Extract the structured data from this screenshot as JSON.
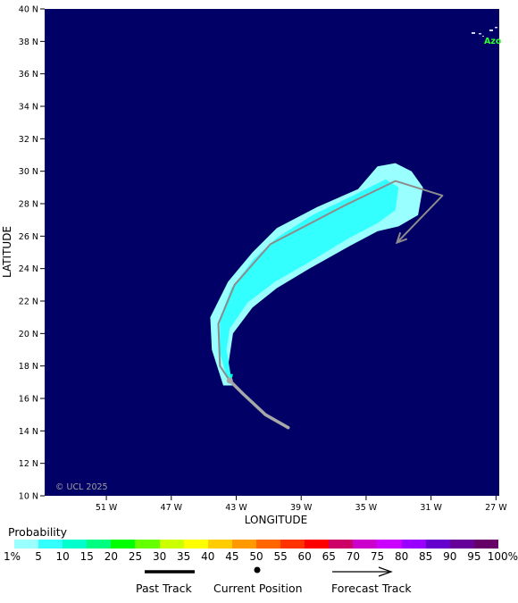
{
  "map": {
    "lat_ticks": [
      "10 N",
      "12 N",
      "14 N",
      "16 N",
      "18 N",
      "20 N",
      "22 N",
      "24 N",
      "26 N",
      "28 N",
      "30 N",
      "32 N",
      "34 N",
      "36 N",
      "38 N",
      "40 N"
    ],
    "lon_ticks": [
      "51 W",
      "47 W",
      "43 W",
      "39 W",
      "35 W",
      "31 W",
      "27 W"
    ],
    "xlabel": "LONGITUDE",
    "ylabel": "LATITUDE",
    "copyright": "© UCL 2025",
    "region_label": "Azo",
    "ocean_color": "#000066",
    "land_color": "#2eff2e"
  },
  "legend": {
    "title": "Probability",
    "labels": [
      "1%",
      "5",
      "10",
      "15",
      "20",
      "25",
      "30",
      "35",
      "40",
      "45",
      "50",
      "55",
      "60",
      "65",
      "70",
      "75",
      "80",
      "85",
      "90",
      "95",
      "100%"
    ],
    "colors": [
      "#99ffff",
      "#33ffff",
      "#00ffcc",
      "#00ff80",
      "#00ff00",
      "#66ff00",
      "#ccff00",
      "#ffff00",
      "#ffcc00",
      "#ff9900",
      "#ff6600",
      "#ff3300",
      "#ff0000",
      "#cc0066",
      "#cc00cc",
      "#cc00ff",
      "#9900ff",
      "#6600cc",
      "#660099",
      "#660066"
    ],
    "past_track_label": "Past Track",
    "current_position_label": "Current Position",
    "forecast_track_label": "Forecast Track"
  },
  "chart_data": {
    "type": "track-map",
    "xlim_lon": [
      -54.8,
      -26.8
    ],
    "ylim_lat": [
      10,
      40
    ],
    "past_track": [
      [
        -39.8,
        14.2
      ],
      [
        -41.2,
        15.0
      ],
      [
        -42.6,
        16.3
      ],
      [
        -43.4,
        17.1
      ]
    ],
    "current_position": [
      -43.4,
      17.1
    ],
    "forecast_track": [
      [
        -43.4,
        17.1
      ],
      [
        -44.0,
        18.0
      ],
      [
        -44.1,
        20.6
      ],
      [
        -43.1,
        23.0
      ],
      [
        -40.9,
        25.5
      ],
      [
        -36.3,
        27.9
      ],
      [
        -33.2,
        29.4
      ],
      [
        -30.3,
        28.5
      ],
      [
        -33.1,
        25.6
      ]
    ],
    "probability_1pct": [
      [
        -43.8,
        16.8
      ],
      [
        -43.2,
        16.8
      ],
      [
        -43.5,
        18.0
      ],
      [
        -43.2,
        20.0
      ],
      [
        -42.0,
        21.6
      ],
      [
        -40.5,
        22.8
      ],
      [
        -38.5,
        24.0
      ],
      [
        -36.0,
        25.4
      ],
      [
        -34.3,
        26.3
      ],
      [
        -33.0,
        26.6
      ],
      [
        -31.8,
        27.3
      ],
      [
        -31.5,
        29.0
      ],
      [
        -32.2,
        30.0
      ],
      [
        -33.2,
        30.5
      ],
      [
        -34.3,
        30.3
      ],
      [
        -35.5,
        28.9
      ],
      [
        -38.0,
        27.8
      ],
      [
        -40.5,
        26.5
      ],
      [
        -42.0,
        25.0
      ],
      [
        -43.5,
        23.2
      ],
      [
        -44.6,
        21.0
      ],
      [
        -44.5,
        19.0
      ]
    ],
    "probability_5pct": [
      [
        -43.5,
        17.0
      ],
      [
        -43.3,
        17.2
      ],
      [
        -43.6,
        19.0
      ],
      [
        -43.4,
        20.3
      ],
      [
        -42.3,
        21.9
      ],
      [
        -40.6,
        23.2
      ],
      [
        -38.5,
        24.4
      ],
      [
        -36.2,
        25.8
      ],
      [
        -34.3,
        26.8
      ],
      [
        -33.2,
        27.6
      ],
      [
        -33.0,
        29.0
      ],
      [
        -33.8,
        29.5
      ],
      [
        -35.8,
        28.5
      ],
      [
        -38.3,
        27.3
      ],
      [
        -40.5,
        25.9
      ],
      [
        -41.9,
        24.6
      ],
      [
        -43.3,
        22.8
      ],
      [
        -44.0,
        21.0
      ],
      [
        -44.0,
        18.8
      ]
    ],
    "probability_10pct": [
      [
        -43.3,
        17.1
      ],
      [
        -43.2,
        17.5
      ],
      [
        -43.4,
        17.5
      ]
    ]
  }
}
